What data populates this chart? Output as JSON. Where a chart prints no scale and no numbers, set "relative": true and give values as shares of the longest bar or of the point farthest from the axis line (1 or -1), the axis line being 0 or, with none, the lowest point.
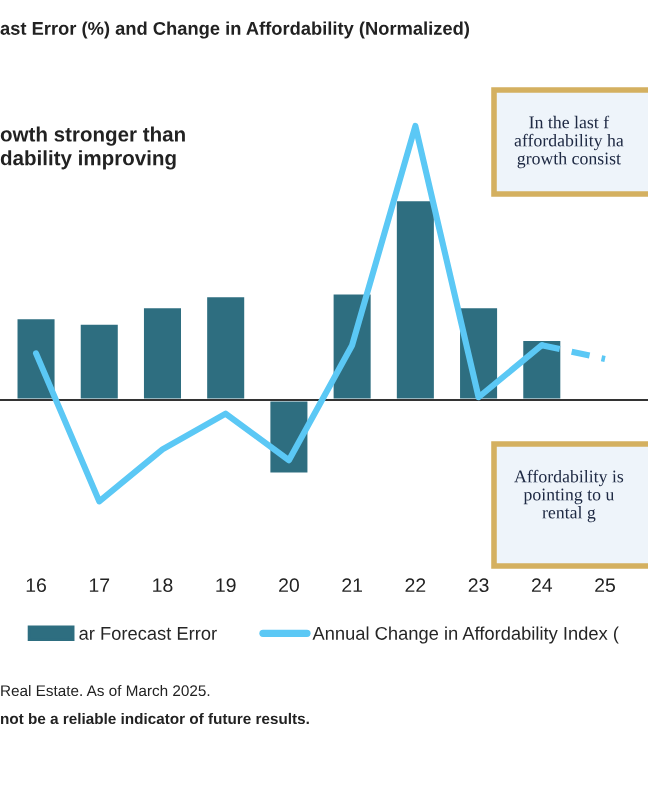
{
  "chart_data": {
    "type": "bar",
    "title": "ast Error (%) and Change in Affordability (Normalized)",
    "relative": true,
    "categories": [
      "16",
      "17",
      "18",
      "19",
      "20",
      "21",
      "22",
      "23",
      "24",
      "25"
    ],
    "series": [
      {
        "name": "ar Forecast Error",
        "color": "#2e6e80",
        "values": [
          0.3,
          0.28,
          0.34,
          0.38,
          -0.27,
          0.39,
          0.73,
          0.34,
          0.22,
          null
        ]
      },
      {
        "type": "line",
        "name": "Annual Change in Affordability Index (",
        "color": "#5bc8f5",
        "line_style": "solid",
        "values": [
          0.17,
          -0.37,
          -0.18,
          -0.05,
          -0.22,
          0.2,
          1,
          0.01,
          0.2,
          null
        ]
      },
      {
        "type": "line",
        "color": "#5bc8f5",
        "line_style": "dashed",
        "values": [
          null,
          null,
          null,
          null,
          null,
          null,
          null,
          null,
          0.2,
          0.15
        ]
      }
    ],
    "annotations": [
      "owth stronger than\ndability improving",
      "In the last f\naffordability ha\ngrowth consist",
      "Affordability is\npointing to u\nrental g",
      "Real Estate. As of March 2025.",
      "not be a reliable indicator of future results."
    ],
    "legend": "bottom",
    "grid": false
  }
}
